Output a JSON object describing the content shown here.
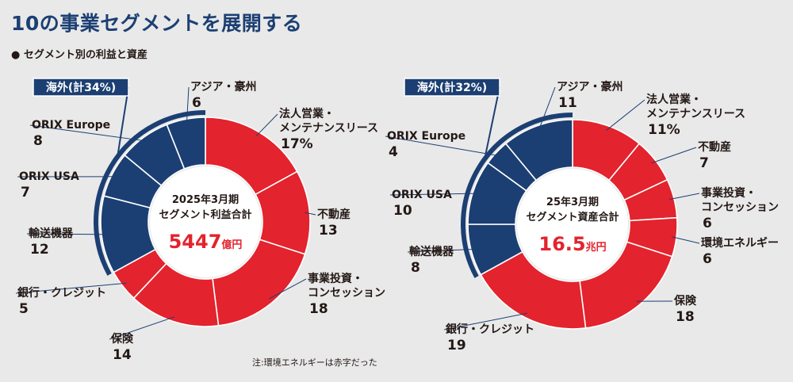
{
  "header": {
    "title": "10の事業セグメントを展開する",
    "subtitle": "● セグメント別の利益と資産"
  },
  "footnote": "注:環境エネルギーは赤字だった",
  "colors": {
    "domestic": "#e3232d",
    "overseas": "#1c3f73",
    "line": "#1c3f73"
  },
  "chart_data": [
    {
      "type": "pie",
      "center_lines": [
        "2025年3月期",
        "セグメント利益合計"
      ],
      "center_value": "5447",
      "center_unit": "億円",
      "overseas_badge": "海外(計34%)",
      "slices": [
        {
          "name": "法人営業・メンテナンスリース",
          "lines": [
            "法人営業・",
            "メンテナンスリース"
          ],
          "value": 17,
          "label": "17%",
          "group": "domestic"
        },
        {
          "name": "不動産",
          "lines": [
            "不動産"
          ],
          "value": 13,
          "label": "13",
          "group": "domestic"
        },
        {
          "name": "事業投資・コンセッション",
          "lines": [
            "事業投資・",
            "コンセッション"
          ],
          "value": 18,
          "label": "18",
          "group": "domestic"
        },
        {
          "name": "保険",
          "lines": [
            "保険"
          ],
          "value": 14,
          "label": "14",
          "group": "domestic"
        },
        {
          "name": "銀行・クレジット",
          "lines": [
            "銀行・クレジット"
          ],
          "value": 5,
          "label": "5",
          "group": "domestic"
        },
        {
          "name": "輸送機器",
          "lines": [
            "輸送機器"
          ],
          "value": 12,
          "label": "12",
          "group": "overseas"
        },
        {
          "name": "ORIX USA",
          "lines": [
            "ORIX USA"
          ],
          "value": 7,
          "label": "7",
          "group": "overseas"
        },
        {
          "name": "ORIX Europe",
          "lines": [
            "ORIX Europe"
          ],
          "value": 8,
          "label": "8",
          "group": "overseas"
        },
        {
          "name": "アジア・豪州",
          "lines": [
            "アジア・豪州"
          ],
          "value": 6,
          "label": "6",
          "group": "overseas"
        }
      ]
    },
    {
      "type": "pie",
      "center_lines": [
        "25年3月期",
        "セグメント資産合計"
      ],
      "center_value": "16.5",
      "center_unit": "兆円",
      "overseas_badge": "海外(計32%)",
      "slices": [
        {
          "name": "法人営業・メンテナンスリース",
          "lines": [
            "法人営業・",
            "メンテナンスリース"
          ],
          "value": 11,
          "label": "11%",
          "group": "domestic"
        },
        {
          "name": "不動産",
          "lines": [
            "不動産"
          ],
          "value": 7,
          "label": "7",
          "group": "domestic"
        },
        {
          "name": "事業投資・コンセッション",
          "lines": [
            "事業投資・",
            "コンセッション"
          ],
          "value": 6,
          "label": "6",
          "group": "domestic"
        },
        {
          "name": "環境エネルギー",
          "lines": [
            "環境エネルギー"
          ],
          "value": 6,
          "label": "6",
          "group": "domestic"
        },
        {
          "name": "保険",
          "lines": [
            "保険"
          ],
          "value": 18,
          "label": "18",
          "group": "domestic"
        },
        {
          "name": "銀行・クレジット",
          "lines": [
            "銀行・クレジット"
          ],
          "value": 19,
          "label": "19",
          "group": "domestic"
        },
        {
          "name": "輸送機器",
          "lines": [
            "輸送機器"
          ],
          "value": 8,
          "label": "8",
          "group": "overseas"
        },
        {
          "name": "ORIX USA",
          "lines": [
            "ORIX USA"
          ],
          "value": 10,
          "label": "10",
          "group": "overseas"
        },
        {
          "name": "ORIX Europe",
          "lines": [
            "ORIX Europe"
          ],
          "value": 4,
          "label": "4",
          "group": "overseas"
        },
        {
          "name": "アジア・豪州",
          "lines": [
            "アジア・豪州"
          ],
          "value": 11,
          "label": "11",
          "group": "overseas"
        }
      ]
    }
  ]
}
